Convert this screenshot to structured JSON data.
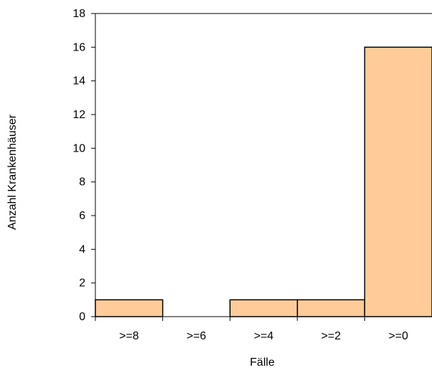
{
  "chart_data": {
    "type": "bar",
    "categories": [
      ">=8",
      ">=6",
      ">=4",
      ">=2",
      ">=0"
    ],
    "values": [
      1,
      0,
      1,
      1,
      16
    ],
    "xlabel": "Fälle",
    "ylabel": "Anzahl Krankenhäuser",
    "ylim": [
      0,
      18
    ],
    "yticks": [
      0,
      2,
      4,
      6,
      8,
      10,
      12,
      14,
      16,
      18
    ],
    "grid": false,
    "legend": "none",
    "bar_color": "#FFCC99",
    "bar_edge_color": "#000000"
  }
}
